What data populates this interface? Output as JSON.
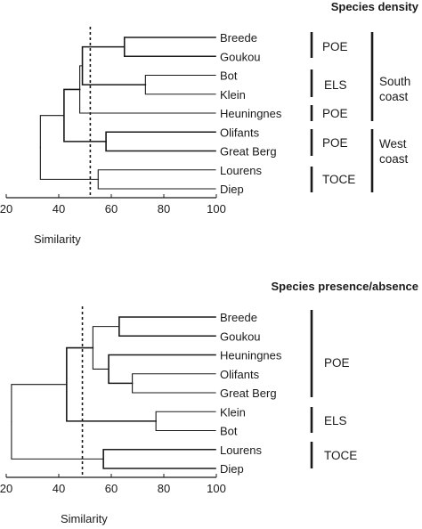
{
  "panels": [
    {
      "title": "Species density",
      "leaves": [
        "Breede",
        "Goukou",
        "Bot",
        "Klein",
        "Heuningnes",
        "Olifants",
        "Great Berg",
        "Lourens",
        "Diep"
      ],
      "groups": [
        "POE",
        "ELS",
        "POE",
        "POE",
        "TOCE"
      ],
      "regions": [
        "South\ncoast",
        "West\ncoast"
      ],
      "x_ticks": [
        "20",
        "40",
        "60",
        "80",
        "100"
      ],
      "x_label": "Similarity",
      "cutoff": 52,
      "merges": [
        {
          "a": 0,
          "b": 1,
          "sim": 65
        },
        {
          "a": 2,
          "b": 3,
          "sim": 73
        },
        {
          "a": 5,
          "b": 6,
          "sim": 58
        },
        {
          "a": 7,
          "b": 8,
          "sim": 55
        },
        {
          "a": 9,
          "b": 10,
          "sim": 49
        },
        {
          "a": 13,
          "b": 4,
          "sim": 48
        },
        {
          "a": 14,
          "b": 11,
          "sim": 42
        },
        {
          "a": 15,
          "b": 12,
          "sim": 33
        }
      ]
    },
    {
      "title": "Species presence/absence",
      "leaves": [
        "Breede",
        "Goukou",
        "Heuningnes",
        "Olifants",
        "Great Berg",
        "Klein",
        "Bot",
        "Lourens",
        "Diep"
      ],
      "groups": [
        "POE",
        "ELS",
        "TOCE"
      ],
      "regions": [],
      "x_ticks": [
        "20",
        "40",
        "60",
        "80",
        "100"
      ],
      "x_label": "Similarity",
      "cutoff": 49,
      "merges": [
        {
          "a": 0,
          "b": 1,
          "sim": 63
        },
        {
          "a": 3,
          "b": 4,
          "sim": 68
        },
        {
          "a": 2,
          "b": 10,
          "sim": 59
        },
        {
          "a": 5,
          "b": 6,
          "sim": 77
        },
        {
          "a": 7,
          "b": 8,
          "sim": 57
        },
        {
          "a": 9,
          "b": 11,
          "sim": 53
        },
        {
          "a": 14,
          "b": 12,
          "sim": 43
        },
        {
          "a": 15,
          "b": 13,
          "sim": 22
        }
      ]
    }
  ]
}
